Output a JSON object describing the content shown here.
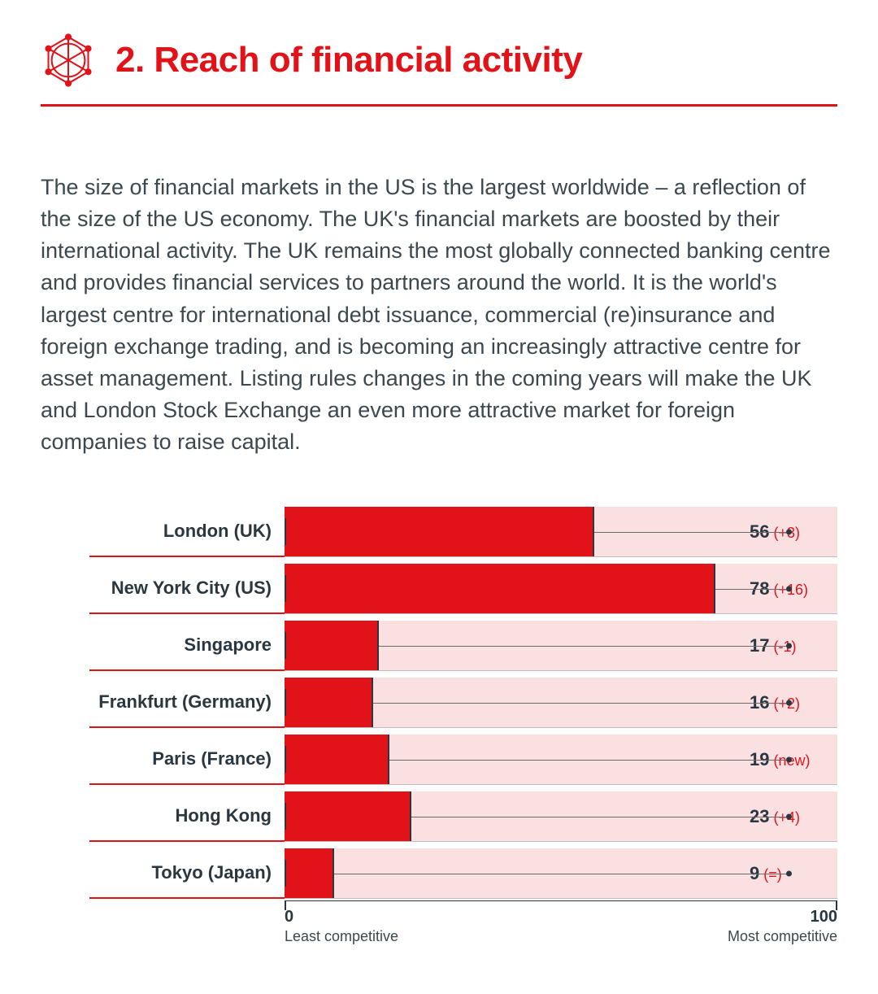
{
  "header": {
    "icon_name": "globe-network-icon",
    "icon_color": "#e21219",
    "title": "2. Reach of financial activity",
    "title_color": "#e21219",
    "title_fontsize": 44,
    "rule_color": "#e21219"
  },
  "description": {
    "text": "The size of financial markets in the US is the largest worldwide – a reflection of the size of the US economy. The UK's financial markets are boosted by their international activity. The UK remains the most globally connected banking centre and provides financial services to partners around the world. It is the world's largest centre for international debt issuance, commercial (re)insurance and foreign exchange trading, and is becoming an increasingly attractive centre for asset management. Listing rules changes in the coming years will make the UK and London Stock Exchange an even more attractive market for foreign companies to raise capital.",
    "fontsize": 27,
    "color": "#3c4850"
  },
  "chart": {
    "type": "bar",
    "orientation": "horizontal",
    "xlim": [
      0,
      100
    ],
    "x_min_label": "0",
    "x_max_label": "100",
    "x_min_sub": "Least competitive",
    "x_max_sub": "Most competitive",
    "bar_fill_color": "#e21219",
    "bar_track_color": "#fbe0e2",
    "label_underline_color": "#e21219",
    "value_color": "#2a3740",
    "change_color": "#e21219",
    "label_fontsize": 22,
    "value_fontsize": 22,
    "change_fontsize": 18,
    "axis_color": "#2a3740",
    "bars": [
      {
        "label": "London (UK)",
        "value": 56,
        "change": "(+3)"
      },
      {
        "label": "New York City (US)",
        "value": 78,
        "change": "(+16)"
      },
      {
        "label": "Singapore",
        "value": 17,
        "change": "(-1)"
      },
      {
        "label": "Frankfurt (Germany)",
        "value": 16,
        "change": "(+2)"
      },
      {
        "label": "Paris (France)",
        "value": 19,
        "change": "(new)"
      },
      {
        "label": "Hong Kong",
        "value": 23,
        "change": "(+4)"
      },
      {
        "label": "Tokyo (Japan)",
        "value": 9,
        "change": "(=)"
      }
    ]
  },
  "background_color": "#ffffff"
}
